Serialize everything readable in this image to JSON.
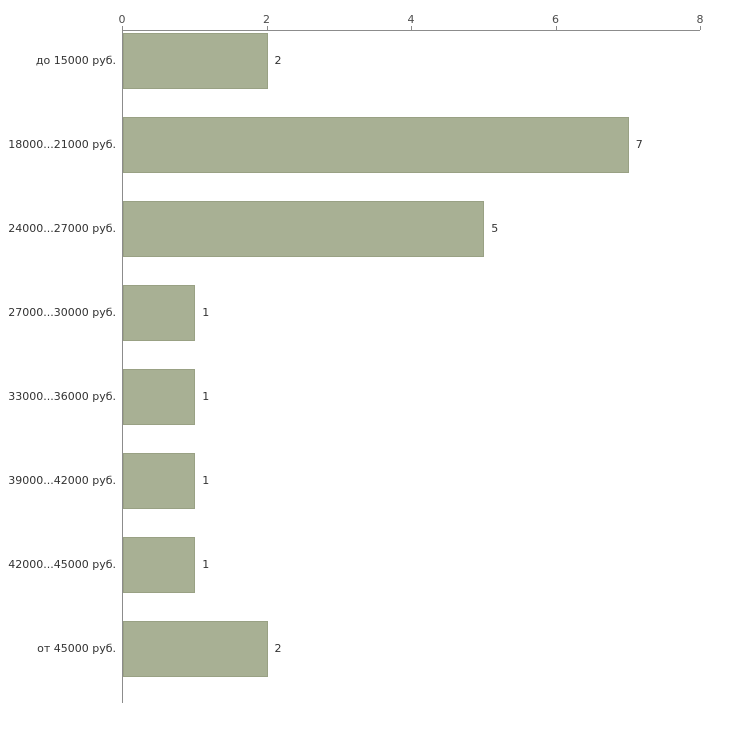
{
  "chart_data": {
    "type": "bar",
    "orientation": "horizontal",
    "title": "",
    "xlabel": "",
    "ylabel": "",
    "categories": [
      "до 15000 руб.",
      "18000...21000 руб.",
      "24000...27000 руб.",
      "27000...30000 руб.",
      "33000...36000 руб.",
      "39000...42000 руб.",
      "42000...45000 руб.",
      "от 45000 руб."
    ],
    "values": [
      2,
      7,
      5,
      1,
      1,
      1,
      1,
      2
    ],
    "xlim": [
      0,
      8
    ],
    "x_ticks": [
      0,
      2,
      4,
      6,
      8
    ],
    "x_axis_position": "top",
    "grid": false,
    "legend": null,
    "bar_color": "#a8b094",
    "bar_border_color": "#99a184",
    "axis_color": "#8c8c8c",
    "label_color": "#333333",
    "tick_label_color": "#4d4d4d",
    "background_color": "#ffffff"
  }
}
